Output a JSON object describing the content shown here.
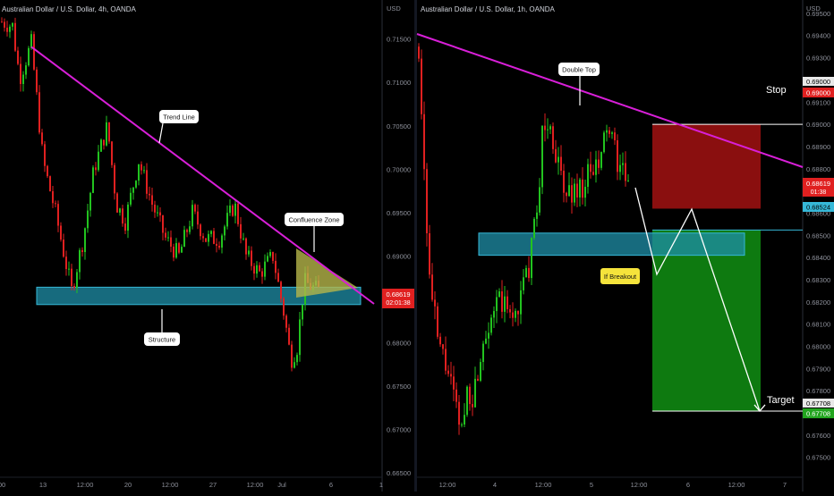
{
  "colors": {
    "background": "#000000",
    "up": "#22c31f",
    "down": "#e02020",
    "trend_line": "#d81fd8",
    "zone_fill": "#1f8fa8",
    "zone_border": "#36b8d8",
    "confluence_fill": "#b5b54a",
    "stop_fill": "#8a0f0f",
    "target_fill": "#0e7a10",
    "text": "#d1d4dc",
    "axis_text": "#8e919b",
    "callout_bg": "#ffffff",
    "breakout_bg": "#f5e33b"
  },
  "chart_data": [
    {
      "type": "candlestick",
      "title": "Australian Dollar / U.S. Dollar, 4h, OANDA",
      "currency": "USD",
      "ylim": [
        0.6645,
        0.7195
      ],
      "y_ticks": [
        "0.71500",
        "0.71000",
        "0.70500",
        "0.70000",
        "0.69500",
        "0.69000",
        "0.68500",
        "0.68000",
        "0.67500",
        "0.67000",
        "0.66500"
      ],
      "x_ticks": [
        "00",
        "13",
        "12:00",
        "20",
        "12:00",
        "27",
        "12:00",
        "Jul",
        "6",
        "1"
      ],
      "last_price": "0.68619",
      "countdown": "02:01:38",
      "annotations": {
        "trend_line": "Trend Line",
        "confluence": "Confluence Zone",
        "structure": "Structure"
      },
      "support_zone": [
        0.6844,
        0.6864
      ],
      "trend_line_points": [
        [
          0.7141
        ],
        [
          0.6847
        ]
      ]
    },
    {
      "type": "candlestick",
      "title": "Australian Dollar / U.S. Dollar, 1h, OANDA",
      "currency": "USD",
      "ylim": [
        0.6741,
        0.6956
      ],
      "y_ticks": [
        "0.69500",
        "0.69400",
        "0.69300",
        "0.69200",
        "0.69100",
        "0.69000",
        "0.68900",
        "0.68800",
        "0.68700",
        "0.68600",
        "0.68500",
        "0.68400",
        "0.68300",
        "0.68200",
        "0.68100",
        "0.68000",
        "0.67900",
        "0.67800",
        "0.67700",
        "0.67600",
        "0.67500"
      ],
      "x_ticks": [
        "12:00",
        "4",
        "12:00",
        "5",
        "12:00",
        "6",
        "12:00",
        "7"
      ],
      "last_price": "0.68619",
      "countdown": "01:38",
      "zone_price": "0.68524",
      "stop_price": "0.69000",
      "target_price": "0.67708",
      "labels": {
        "stop": "Stop",
        "target": "Target",
        "double_top": "Double Top",
        "breakout": "If Breakout"
      },
      "resistance_zone": [
        0.6841,
        0.6851
      ]
    }
  ]
}
